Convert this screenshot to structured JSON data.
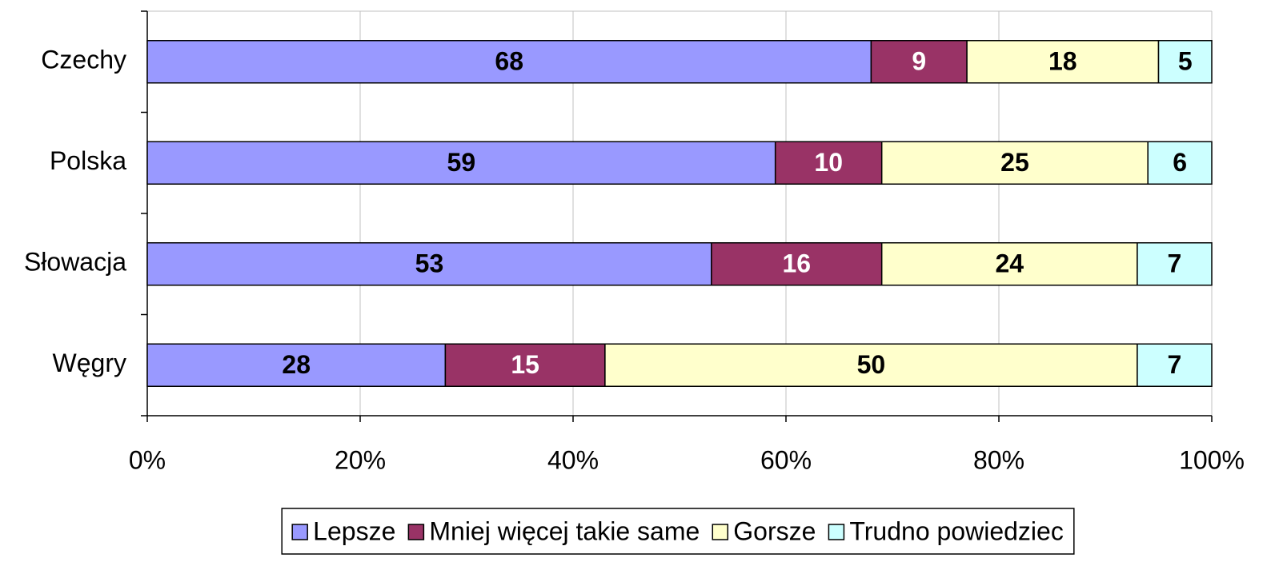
{
  "chart_data": {
    "type": "stacked_barh",
    "categories": [
      "Czechy",
      "Polska",
      "Słowacja",
      "Węgry"
    ],
    "series": [
      {
        "name": "Lepsze",
        "color": "#9999ff",
        "label_color": "#000000",
        "values": [
          68,
          59,
          53,
          28
        ]
      },
      {
        "name": "Mniej więcej takie same",
        "color": "#993366",
        "label_color": "#ffffff",
        "values": [
          9,
          10,
          16,
          15
        ]
      },
      {
        "name": "Gorsze",
        "color": "#ffffcc",
        "label_color": "#000000",
        "values": [
          18,
          25,
          24,
          50
        ]
      },
      {
        "name": "Trudno powiedziec",
        "color": "#ccffff",
        "label_color": "#000000",
        "values": [
          5,
          6,
          7,
          7
        ]
      }
    ],
    "xlim": [
      0,
      100
    ],
    "xticks": [
      {
        "value": 0,
        "label": "0%"
      },
      {
        "value": 20,
        "label": "20%"
      },
      {
        "value": 40,
        "label": "40%"
      },
      {
        "value": 60,
        "label": "60%"
      },
      {
        "value": 80,
        "label": "80%"
      },
      {
        "value": 100,
        "label": "100%"
      }
    ],
    "grid": true,
    "legend": "bottom"
  }
}
